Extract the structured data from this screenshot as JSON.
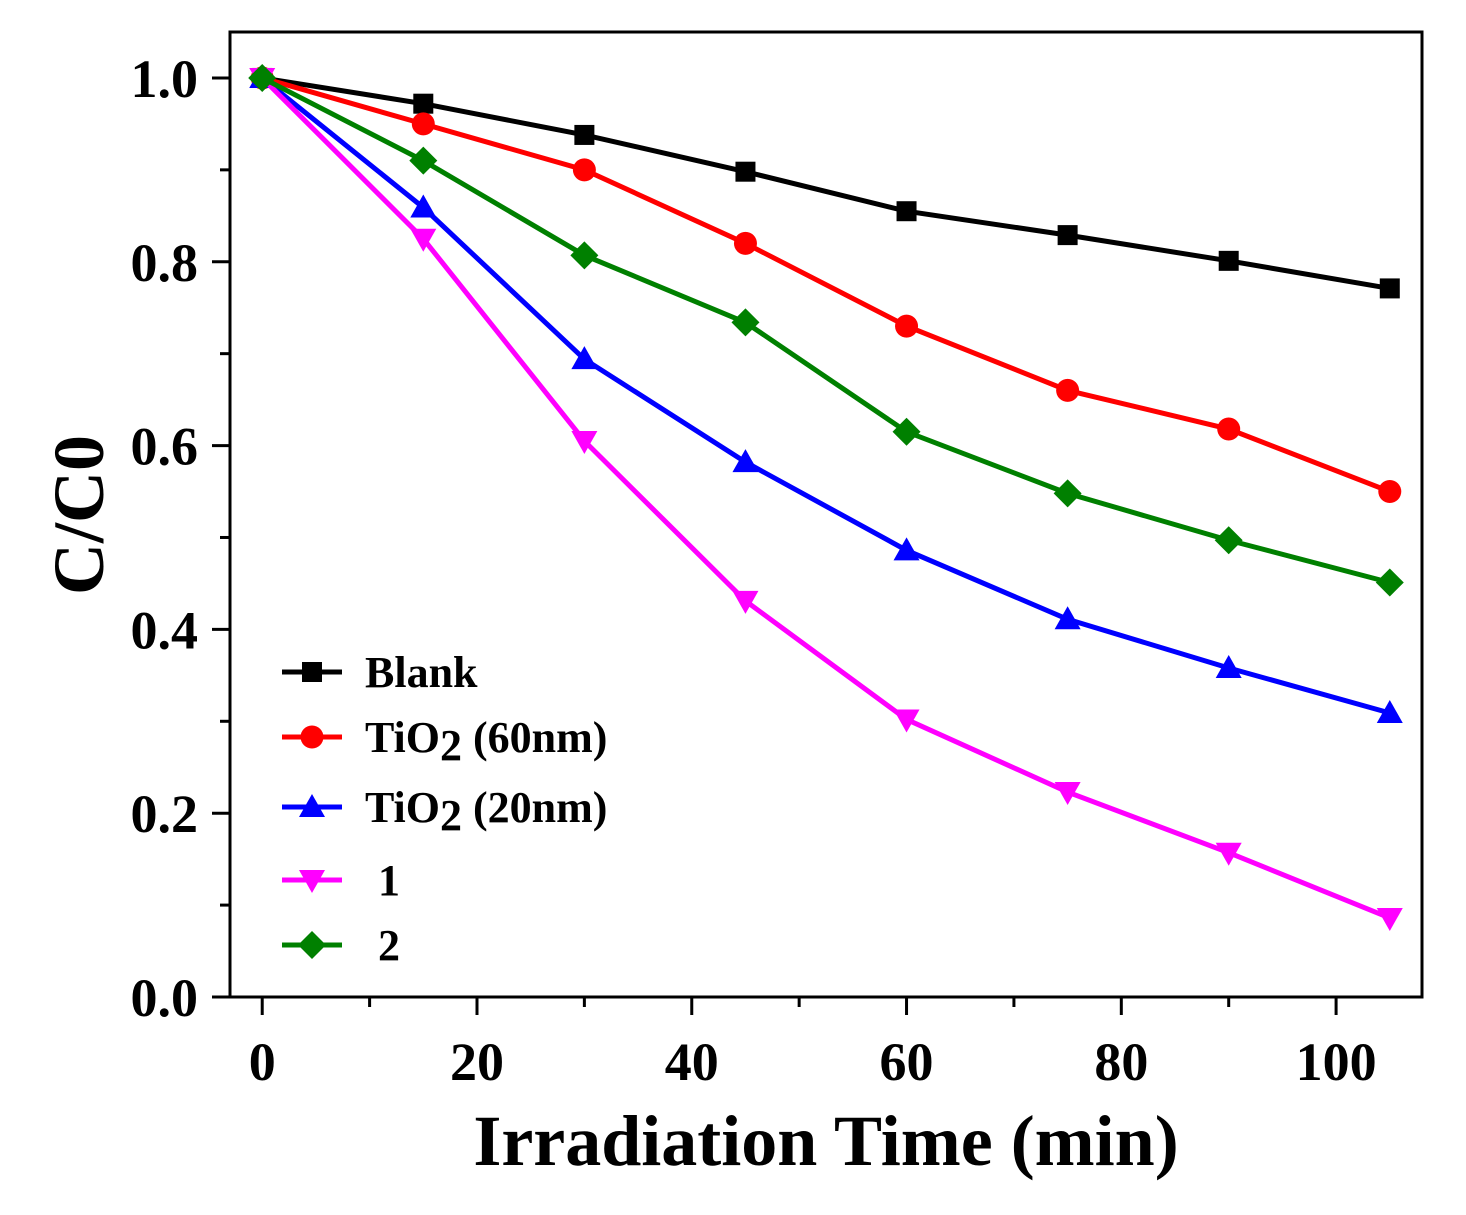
{
  "chart_data": {
    "type": "line",
    "title": "",
    "xlabel": "Irradiation Time (min)",
    "ylabel": "C/C0",
    "xlim": [
      -3,
      108
    ],
    "ylim": [
      0,
      1.05
    ],
    "xticks": [
      0,
      20,
      40,
      60,
      80,
      100
    ],
    "xtick_labels": [
      "0",
      "20",
      "40",
      "60",
      "80",
      "100"
    ],
    "yticks": [
      0.0,
      0.2,
      0.4,
      0.6,
      0.8,
      1.0
    ],
    "ytick_labels": [
      "0.0",
      "0.2",
      "0.4",
      "0.6",
      "0.8",
      "1.0"
    ],
    "grid": false,
    "legend_position": "bottom-left",
    "x": [
      0,
      15,
      30,
      45,
      60,
      75,
      90,
      105
    ],
    "series": [
      {
        "name": "Blank",
        "color": "#000000",
        "marker": "square",
        "values": [
          1.0,
          0.972,
          0.938,
          0.898,
          0.855,
          0.829,
          0.801,
          0.771
        ]
      },
      {
        "name": "TiO2 (60nm)",
        "color": "#ff0000",
        "marker": "circle",
        "values": [
          1.0,
          0.95,
          0.9,
          0.82,
          0.73,
          0.66,
          0.618,
          0.55
        ]
      },
      {
        "name": "TiO2 (20nm)",
        "color": "#0000ff",
        "marker": "triangle-up",
        "values": [
          1.0,
          0.859,
          0.694,
          0.582,
          0.486,
          0.411,
          0.358,
          0.309
        ]
      },
      {
        "name": "1",
        "color": "#ff00ff",
        "marker": "triangle-down",
        "values": [
          1.0,
          0.825,
          0.605,
          0.431,
          0.302,
          0.223,
          0.157,
          0.086
        ]
      },
      {
        "name": "2",
        "color": "#008000",
        "marker": "diamond",
        "values": [
          1.0,
          0.91,
          0.807,
          0.734,
          0.615,
          0.548,
          0.497,
          0.451
        ]
      }
    ]
  }
}
